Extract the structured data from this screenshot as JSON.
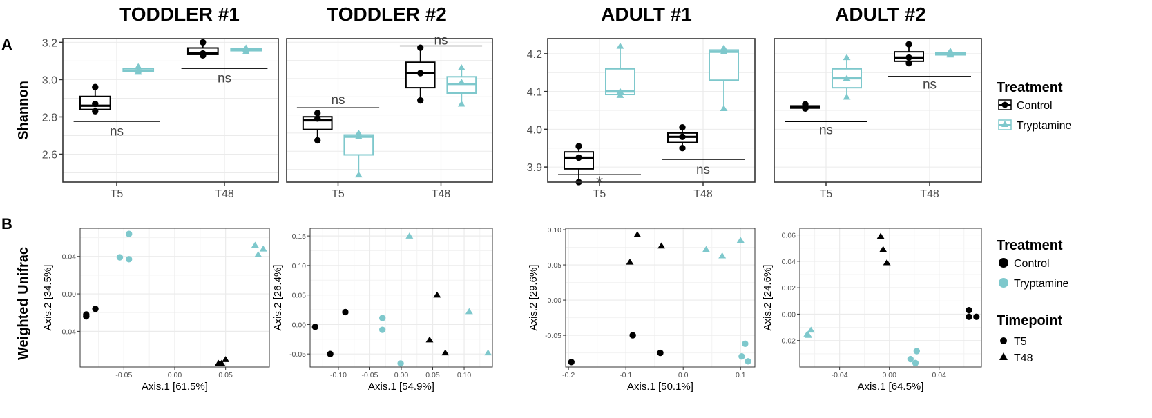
{
  "panel_labels": {
    "a": "A",
    "b": "B"
  },
  "column_titles": [
    "TODDLER #1",
    "TODDLER #2",
    "ADULT #1",
    "ADULT #2"
  ],
  "row_labels": {
    "shannon": "Shannon",
    "unifrac": "Weighted Unifrac"
  },
  "colors": {
    "control": "#000000",
    "tryptamine": "#7ec8cc",
    "grid": "#ebebeb",
    "frame": "#333333",
    "axis_text": "#4d4d4d"
  },
  "legend_box": {
    "title": "Treatment",
    "items": [
      {
        "label": "Control",
        "group": "control"
      },
      {
        "label": "Tryptamine",
        "group": "tryptamine"
      }
    ]
  },
  "legend_pcoa": {
    "treatment_title": "Treatment",
    "treatment_items": [
      {
        "label": "Control",
        "group": "control"
      },
      {
        "label": "Tryptamine",
        "group": "tryptamine"
      }
    ],
    "timepoint_title": "Timepoint",
    "timepoint_items": [
      {
        "label": "T5",
        "shape": "circle"
      },
      {
        "label": "T48",
        "shape": "triangle"
      }
    ]
  },
  "chart_data": [
    {
      "type": "box",
      "subject": "TODDLER #1",
      "ylabel": "Shannon",
      "categories": [
        "T5",
        "T48"
      ],
      "ylim": [
        2.45,
        3.22
      ],
      "yticks": [
        2.6,
        2.8,
        3.0,
        3.2
      ],
      "ytick_labels": [
        "2.6",
        "2.8",
        "3.0",
        "3.2"
      ],
      "groups": [
        {
          "name": "Control",
          "color": "control",
          "shape": "circle",
          "boxes": [
            {
              "category": "T5",
              "min": 2.83,
              "q1": 2.84,
              "median": 2.86,
              "q3": 2.91,
              "max": 2.96,
              "points": [
                2.83,
                2.87,
                2.96
              ]
            },
            {
              "category": "T48",
              "min": 3.13,
              "q1": 3.135,
              "median": 3.14,
              "q3": 3.17,
              "max": 3.2,
              "points": [
                3.13,
                3.14,
                3.2
              ]
            }
          ]
        },
        {
          "name": "Tryptamine",
          "color": "tryptamine",
          "shape": "triangle",
          "boxes": [
            {
              "category": "T5",
              "min": 3.04,
              "q1": 3.045,
              "median": 3.05,
              "q3": 3.06,
              "max": 3.07,
              "points": [
                3.04,
                3.05,
                3.07
              ]
            },
            {
              "category": "T48",
              "min": 3.15,
              "q1": 3.155,
              "median": 3.16,
              "q3": 3.165,
              "max": 3.17,
              "points": [
                3.15,
                3.16,
                3.17
              ]
            }
          ]
        }
      ],
      "significance": [
        {
          "category": "T5",
          "label": "ns",
          "line_y": 2.775,
          "label_y": 2.725
        },
        {
          "category": "T48",
          "label": "ns",
          "line_y": 3.06,
          "label_y": 3.01
        }
      ]
    },
    {
      "type": "box",
      "subject": "TODDLER #2",
      "ylabel": "Shannon",
      "categories": [
        "T5",
        "T48"
      ],
      "ylim": [
        2.43,
        3.22
      ],
      "yticks": [],
      "ytick_labels": [],
      "groups": [
        {
          "name": "Control",
          "color": "control",
          "shape": "circle",
          "boxes": [
            {
              "category": "T5",
              "min": 2.66,
              "q1": 2.72,
              "median": 2.77,
              "q3": 2.79,
              "max": 2.81,
              "points": [
                2.66,
                2.78,
                2.81
              ]
            },
            {
              "category": "T48",
              "min": 2.88,
              "q1": 2.95,
              "median": 3.03,
              "q3": 3.09,
              "max": 3.17,
              "points": [
                2.88,
                3.03,
                3.17
              ]
            }
          ]
        },
        {
          "name": "Tryptamine",
          "color": "tryptamine",
          "shape": "triangle",
          "boxes": [
            {
              "category": "T5",
              "min": 2.47,
              "q1": 2.58,
              "median": 2.68,
              "q3": 2.69,
              "max": 2.7,
              "points": [
                2.47,
                2.68,
                2.7
              ]
            },
            {
              "category": "T48",
              "min": 2.86,
              "q1": 2.92,
              "median": 2.97,
              "q3": 3.01,
              "max": 3.06,
              "points": [
                2.86,
                2.98,
                3.06
              ]
            }
          ]
        }
      ],
      "significance": [
        {
          "category": "T5",
          "label": "ns",
          "line_y": 2.84,
          "label_y": 2.885
        },
        {
          "category": "T48",
          "label": "ns",
          "line_y": 3.18,
          "label_y": 3.215
        }
      ]
    },
    {
      "type": "box",
      "subject": "ADULT #1",
      "ylabel": "Shannon",
      "categories": [
        "T5",
        "T48"
      ],
      "ylim": [
        3.86,
        4.24
      ],
      "yticks": [
        3.9,
        4.0,
        4.1,
        4.2
      ],
      "ytick_labels": [
        "3.9",
        "4.0",
        "4.1",
        "4.2"
      ],
      "groups": [
        {
          "name": "Control",
          "color": "control",
          "shape": "circle",
          "boxes": [
            {
              "category": "T5",
              "min": 3.86,
              "q1": 3.895,
              "median": 3.925,
              "q3": 3.94,
              "max": 3.955,
              "points": [
                3.86,
                3.925,
                3.955
              ]
            },
            {
              "category": "T48",
              "min": 3.95,
              "q1": 3.965,
              "median": 3.98,
              "q3": 3.99,
              "max": 4.005,
              "points": [
                3.95,
                3.98,
                4.005
              ]
            }
          ]
        },
        {
          "name": "Tryptamine",
          "color": "tryptamine",
          "shape": "triangle",
          "boxes": [
            {
              "category": "T5",
              "min": 4.09,
              "q1": 4.092,
              "median": 4.1,
              "q3": 4.16,
              "max": 4.22,
              "points": [
                4.09,
                4.1,
                4.22
              ]
            },
            {
              "category": "T48",
              "min": 4.055,
              "q1": 4.13,
              "median": 4.205,
              "q3": 4.21,
              "max": 4.215,
              "points": [
                4.055,
                4.205,
                4.215
              ]
            }
          ]
        }
      ],
      "significance": [
        {
          "category": "T5",
          "label": "*",
          "line_y": 3.88,
          "label_y": 3.855
        },
        {
          "category": "T48",
          "label": "ns",
          "line_y": 3.92,
          "label_y": 3.895
        }
      ]
    },
    {
      "type": "box",
      "subject": "ADULT #2",
      "ylabel": "Shannon",
      "categories": [
        "T5",
        "T48"
      ],
      "ylim": [
        3.86,
        4.24
      ],
      "yticks": [],
      "ytick_labels": [],
      "groups": [
        {
          "name": "Control",
          "color": "control",
          "shape": "circle",
          "boxes": [
            {
              "category": "T5",
              "min": 4.055,
              "q1": 4.056,
              "median": 4.058,
              "q3": 4.062,
              "max": 4.066,
              "points": [
                4.055,
                4.06,
                4.066
              ]
            },
            {
              "category": "T48",
              "min": 4.175,
              "q1": 4.18,
              "median": 4.19,
              "q3": 4.205,
              "max": 4.225,
              "points": [
                4.175,
                4.19,
                4.225
              ]
            }
          ]
        },
        {
          "name": "Tryptamine",
          "color": "tryptamine",
          "shape": "triangle",
          "boxes": [
            {
              "category": "T5",
              "min": 4.085,
              "q1": 4.11,
              "median": 4.135,
              "q3": 4.16,
              "max": 4.19,
              "points": [
                4.085,
                4.135,
                4.19
              ]
            },
            {
              "category": "T48",
              "min": 4.195,
              "q1": 4.197,
              "median": 4.2,
              "q3": 4.203,
              "max": 4.207,
              "points": [
                4.197,
                4.2,
                4.207
              ]
            }
          ]
        }
      ],
      "significance": [
        {
          "category": "T5",
          "label": "ns",
          "line_y": 4.02,
          "label_y": 4.0
        },
        {
          "category": "T48",
          "label": "ns",
          "line_y": 4.14,
          "label_y": 4.12
        }
      ]
    },
    {
      "type": "scatter",
      "subject": "TODDLER #1",
      "xlabel": "Axis.1   [61.5%]",
      "ylabel": "Axis.2   [34.5%]",
      "xlim": [
        -0.093,
        0.093
      ],
      "ylim": [
        -0.078,
        0.07
      ],
      "xticks": [
        -0.05,
        0.0,
        0.05
      ],
      "xtick_labels": [
        "-0.05",
        "0.00",
        "0.05"
      ],
      "yticks": [
        -0.04,
        0.0,
        0.04
      ],
      "ytick_labels": [
        "-0.04",
        "0.00",
        "0.04"
      ],
      "points": [
        {
          "x": -0.087,
          "y": -0.022,
          "group": "control",
          "shape": "circle"
        },
        {
          "x": -0.087,
          "y": -0.024,
          "group": "control",
          "shape": "circle"
        },
        {
          "x": -0.078,
          "y": -0.016,
          "group": "control",
          "shape": "circle"
        },
        {
          "x": 0.043,
          "y": -0.074,
          "group": "control",
          "shape": "triangle"
        },
        {
          "x": 0.046,
          "y": -0.074,
          "group": "control",
          "shape": "triangle"
        },
        {
          "x": 0.05,
          "y": -0.07,
          "group": "control",
          "shape": "triangle"
        },
        {
          "x": -0.045,
          "y": 0.064,
          "group": "tryptamine",
          "shape": "circle"
        },
        {
          "x": -0.054,
          "y": 0.039,
          "group": "tryptamine",
          "shape": "circle"
        },
        {
          "x": -0.045,
          "y": 0.037,
          "group": "tryptamine",
          "shape": "circle"
        },
        {
          "x": 0.079,
          "y": 0.052,
          "group": "tryptamine",
          "shape": "triangle"
        },
        {
          "x": 0.087,
          "y": 0.048,
          "group": "tryptamine",
          "shape": "triangle"
        },
        {
          "x": 0.082,
          "y": 0.042,
          "group": "tryptamine",
          "shape": "triangle"
        }
      ]
    },
    {
      "type": "scatter",
      "subject": "TODDLER #2",
      "xlabel": "Axis.1   [54.9%]",
      "ylabel": "Axis.2   [26.4%]",
      "xlim": [
        -0.145,
        0.145
      ],
      "ylim": [
        -0.072,
        0.163
      ],
      "xticks": [
        -0.1,
        -0.05,
        0.0,
        0.05,
        0.1
      ],
      "xtick_labels": [
        "-0.10",
        "-0.05",
        "0.00",
        "0.05",
        "0.10"
      ],
      "yticks": [
        -0.05,
        0.0,
        0.05,
        0.1,
        0.15
      ],
      "ytick_labels": [
        "-0.05",
        "0.00",
        "0.05",
        "0.10",
        "0.15"
      ],
      "points": [
        {
          "x": -0.137,
          "y": -0.004,
          "group": "control",
          "shape": "circle"
        },
        {
          "x": -0.089,
          "y": 0.021,
          "group": "control",
          "shape": "circle"
        },
        {
          "x": -0.113,
          "y": -0.05,
          "group": "control",
          "shape": "circle"
        },
        {
          "x": 0.057,
          "y": 0.05,
          "group": "control",
          "shape": "triangle"
        },
        {
          "x": 0.045,
          "y": -0.026,
          "group": "control",
          "shape": "triangle"
        },
        {
          "x": 0.07,
          "y": -0.048,
          "group": "control",
          "shape": "triangle"
        },
        {
          "x": -0.03,
          "y": 0.011,
          "group": "tryptamine",
          "shape": "circle"
        },
        {
          "x": -0.03,
          "y": -0.009,
          "group": "tryptamine",
          "shape": "circle"
        },
        {
          "x": -0.001,
          "y": -0.066,
          "group": "tryptamine",
          "shape": "circle"
        },
        {
          "x": 0.013,
          "y": 0.15,
          "group": "tryptamine",
          "shape": "triangle"
        },
        {
          "x": 0.108,
          "y": 0.022,
          "group": "tryptamine",
          "shape": "triangle"
        },
        {
          "x": 0.138,
          "y": -0.048,
          "group": "tryptamine",
          "shape": "triangle"
        }
      ]
    },
    {
      "type": "scatter",
      "subject": "ADULT #1",
      "xlabel": "Axis.1   [50.1%]",
      "ylabel": "Axis.2   [29.6%]",
      "xlim": [
        -0.205,
        0.125
      ],
      "ylim": [
        -0.095,
        0.102
      ],
      "xticks": [
        -0.2,
        -0.1,
        0.0,
        0.1
      ],
      "xtick_labels": [
        "-0.2",
        "-0.1",
        "0.0",
        "0.1"
      ],
      "yticks": [
        -0.05,
        0.0,
        0.05,
        0.1
      ],
      "ytick_labels": [
        "-0.05",
        "0.00",
        "0.05",
        "0.10"
      ],
      "points": [
        {
          "x": -0.195,
          "y": -0.088,
          "group": "control",
          "shape": "circle"
        },
        {
          "x": -0.088,
          "y": -0.05,
          "group": "control",
          "shape": "circle"
        },
        {
          "x": -0.04,
          "y": -0.075,
          "group": "control",
          "shape": "circle"
        },
        {
          "x": -0.08,
          "y": 0.093,
          "group": "control",
          "shape": "triangle"
        },
        {
          "x": -0.093,
          "y": 0.054,
          "group": "control",
          "shape": "triangle"
        },
        {
          "x": -0.038,
          "y": 0.077,
          "group": "control",
          "shape": "triangle"
        },
        {
          "x": 0.108,
          "y": -0.062,
          "group": "tryptamine",
          "shape": "circle"
        },
        {
          "x": 0.102,
          "y": -0.08,
          "group": "tryptamine",
          "shape": "circle"
        },
        {
          "x": 0.113,
          "y": -0.087,
          "group": "tryptamine",
          "shape": "circle"
        },
        {
          "x": 0.04,
          "y": 0.072,
          "group": "tryptamine",
          "shape": "triangle"
        },
        {
          "x": 0.068,
          "y": 0.063,
          "group": "tryptamine",
          "shape": "triangle"
        },
        {
          "x": 0.1,
          "y": 0.085,
          "group": "tryptamine",
          "shape": "triangle"
        }
      ]
    },
    {
      "type": "scatter",
      "subject": "ADULT #2",
      "xlabel": "Axis.1   [64.5%]",
      "ylabel": "Axis.2   [24.6%]",
      "xlim": [
        -0.072,
        0.074
      ],
      "ylim": [
        -0.04,
        0.065
      ],
      "xticks": [
        -0.04,
        0.0,
        0.04
      ],
      "xtick_labels": [
        "-0.04",
        "0.00",
        "0.04"
      ],
      "yticks": [
        -0.02,
        0.0,
        0.02,
        0.04,
        0.06
      ],
      "ytick_labels": [
        "-0.02",
        "0.00",
        "0.02",
        "0.04",
        "0.06"
      ],
      "points": [
        {
          "x": 0.064,
          "y": 0.003,
          "group": "control",
          "shape": "circle"
        },
        {
          "x": 0.064,
          "y": -0.002,
          "group": "control",
          "shape": "circle"
        },
        {
          "x": 0.07,
          "y": -0.002,
          "group": "control",
          "shape": "circle"
        },
        {
          "x": -0.007,
          "y": 0.059,
          "group": "control",
          "shape": "triangle"
        },
        {
          "x": -0.005,
          "y": 0.049,
          "group": "control",
          "shape": "triangle"
        },
        {
          "x": -0.002,
          "y": 0.039,
          "group": "control",
          "shape": "triangle"
        },
        {
          "x": 0.022,
          "y": -0.028,
          "group": "tryptamine",
          "shape": "circle"
        },
        {
          "x": 0.017,
          "y": -0.034,
          "group": "tryptamine",
          "shape": "circle"
        },
        {
          "x": 0.021,
          "y": -0.037,
          "group": "tryptamine",
          "shape": "circle"
        },
        {
          "x": -0.063,
          "y": -0.012,
          "group": "tryptamine",
          "shape": "triangle"
        },
        {
          "x": -0.066,
          "y": -0.015,
          "group": "tryptamine",
          "shape": "triangle"
        },
        {
          "x": -0.065,
          "y": -0.016,
          "group": "tryptamine",
          "shape": "triangle"
        }
      ]
    }
  ]
}
